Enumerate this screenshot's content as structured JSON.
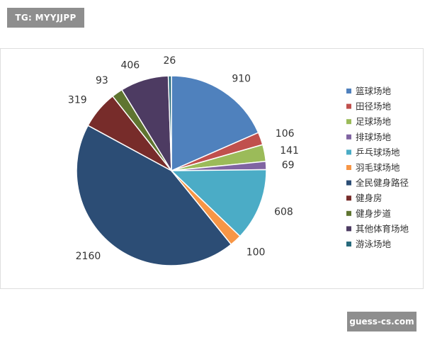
{
  "watermarks": {
    "top": "TG: MYYJJPP",
    "bottom": "guess-cs.com"
  },
  "chart_data": {
    "type": "pie",
    "start_angle_deg": 0,
    "direction": "clockwise",
    "legend_position": "right",
    "slices": [
      {
        "label": "篮球场地",
        "value": 910,
        "color": "#4f81bd"
      },
      {
        "label": "田径场地",
        "value": 106,
        "color": "#c0504d"
      },
      {
        "label": "足球场地",
        "value": 141,
        "color": "#9bbb59"
      },
      {
        "label": "排球场地",
        "value": 69,
        "color": "#8064a2"
      },
      {
        "label": "乒乓球场地",
        "value": 608,
        "color": "#4bacc6"
      },
      {
        "label": "羽毛球场地",
        "value": 100,
        "color": "#f79646"
      },
      {
        "label": "全民健身路径",
        "value": 2160,
        "color": "#2c4d75"
      },
      {
        "label": "健身房",
        "value": 319,
        "color": "#772c2a"
      },
      {
        "label": "健身步道",
        "value": 93,
        "color": "#5f7530"
      },
      {
        "label": "其他体育场地",
        "value": 406,
        "color": "#4d3b62"
      },
      {
        "label": "游泳场地",
        "value": 26,
        "color": "#276a7c"
      }
    ]
  }
}
